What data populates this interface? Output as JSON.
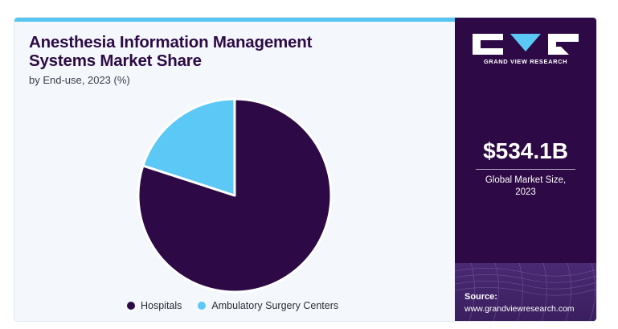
{
  "header": {
    "title": "Anesthesia Information Management Systems Market Share",
    "subtitle": "by End-use, 2023 (%)"
  },
  "chart_data": {
    "type": "pie",
    "title": "Anesthesia Information Management Systems Market Share",
    "subtitle": "by End-use, 2023 (%)",
    "categories": [
      "Hospitals",
      "Ambulatory Surgery Centers"
    ],
    "values": [
      80,
      20
    ],
    "colors": [
      "#2d0a45",
      "#5bc8f5"
    ],
    "legend_position": "bottom"
  },
  "sidebar": {
    "brand": "GRAND VIEW RESEARCH",
    "market_value": "$534.1B",
    "market_label_line1": "Global Market Size,",
    "market_label_line2": "2023",
    "source_label": "Source:",
    "source_url": "www.grandviewresearch.com",
    "brand_color": "#2d0a45"
  }
}
